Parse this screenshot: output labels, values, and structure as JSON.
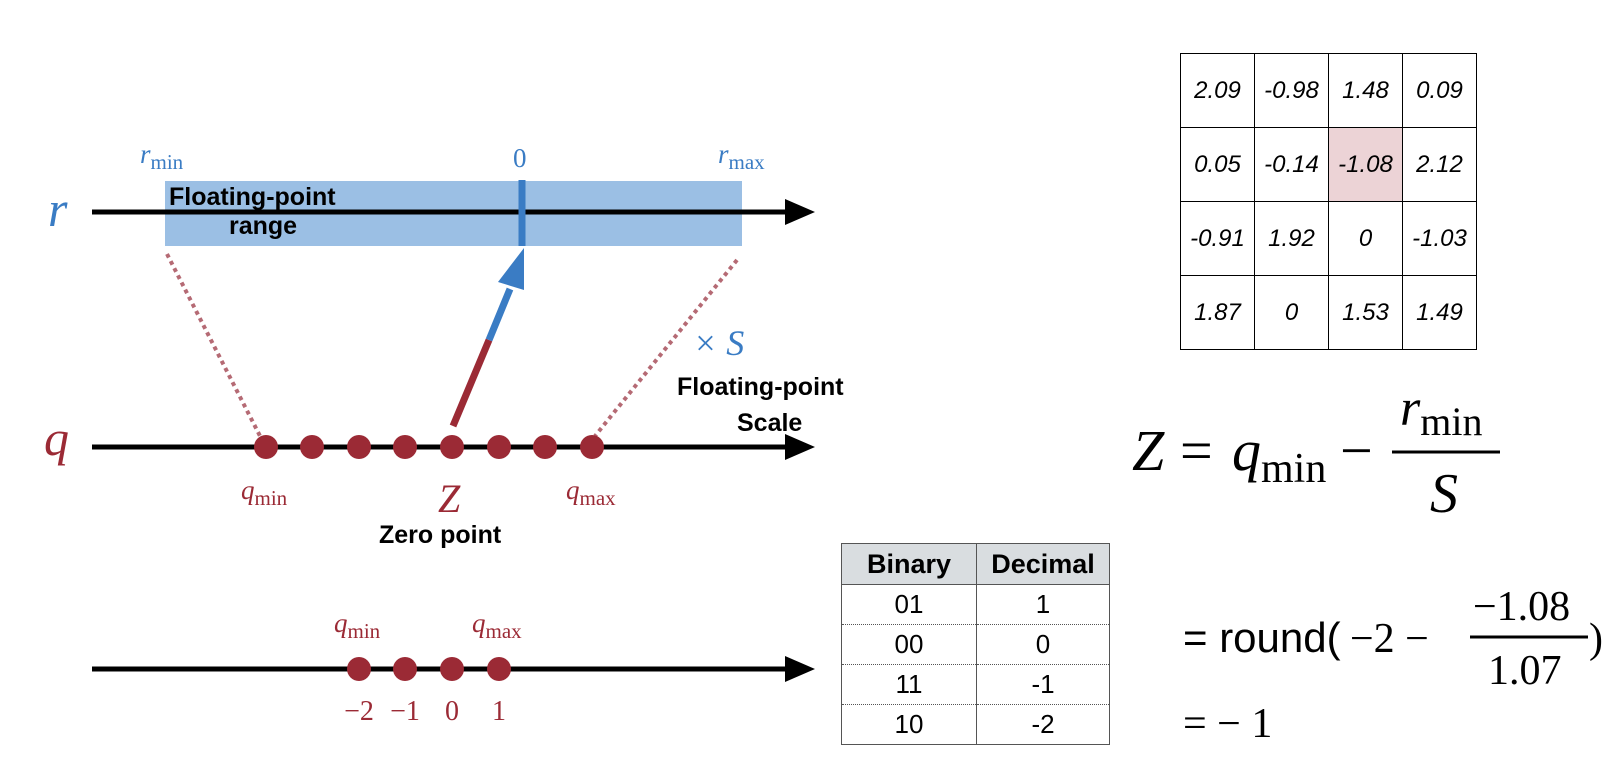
{
  "colors": {
    "blue": "#3a7cc4",
    "red": "#9b2a35",
    "band": "#9bbfe4",
    "dotted": "#b56a74",
    "black": "#000000"
  },
  "labels": {
    "r_axis": "r",
    "q_axis": "q",
    "r_min": "r",
    "r_min_sub": "min",
    "r_zero": "0",
    "r_max": "r",
    "r_max_sub": "max",
    "fp_range_line1": "Floating-point",
    "fp_range_line2": "range",
    "scale_symbol": "× S",
    "fp_scale_line1": "Floating-point",
    "fp_scale_line2": "Scale",
    "q_min": "q",
    "q_min_sub": "min",
    "q_max": "q",
    "q_max_sub": "max",
    "z_symbol": "Z",
    "zero_point": "Zero point",
    "q_min_bottom": "q",
    "q_min_bottom_sub": "min",
    "q_max_bottom": "q",
    "q_max_bottom_sub": "max",
    "tick_values": [
      "−2",
      "−1",
      "0",
      "1"
    ]
  },
  "matrix": [
    [
      "2.09",
      "-0.98",
      "1.48",
      "0.09"
    ],
    [
      "0.05",
      "-0.14",
      "-1.08",
      "2.12"
    ],
    [
      "-0.91",
      "1.92",
      "0",
      "-1.03"
    ],
    [
      "1.87",
      "0",
      "1.53",
      "1.49"
    ]
  ],
  "highlight_cell": {
    "row": 1,
    "col": 2
  },
  "bin_table": {
    "headers": [
      "Binary",
      "Decimal"
    ],
    "rows": [
      [
        "01",
        "1"
      ],
      [
        "00",
        "0"
      ],
      [
        "11",
        "-1"
      ],
      [
        "10",
        "-2"
      ]
    ]
  },
  "formula": {
    "z": "Z",
    "eq": "=",
    "q": "q",
    "q_sub": "min",
    "minus": "−",
    "num": "r",
    "num_sub": "min",
    "den": "S",
    "line2_prefix": "= round(",
    "line2_mid": "−2 − ",
    "line2_num": "−1.08",
    "line2_den": "1.07",
    "line2_close": ")",
    "line3": "= − 1"
  }
}
